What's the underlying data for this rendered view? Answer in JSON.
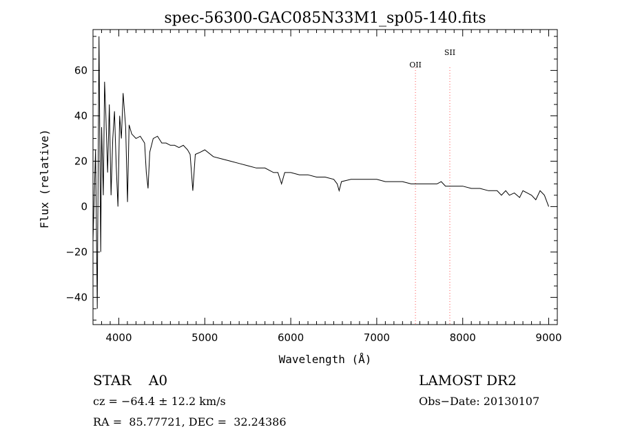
{
  "chart_data": {
    "type": "line",
    "title": "spec-56300-GAC085N33M1_sp05-140.fits",
    "xlabel": "Wavelength (Å)",
    "ylabel": "Flux (relative)",
    "xlim": [
      3700,
      9100
    ],
    "ylim": [
      -52,
      78
    ],
    "xticks": [
      4000,
      5000,
      6000,
      7000,
      8000,
      9000
    ],
    "yticks": [
      -40,
      -20,
      0,
      20,
      40,
      60
    ],
    "tick_labels_x": [
      "4000",
      "5000",
      "6000",
      "7000",
      "8000",
      "9000"
    ],
    "tick_labels_y": [
      "−40",
      "−20",
      "0",
      "20",
      "40",
      "60"
    ],
    "grid": false,
    "series": [
      {
        "x": [
          3700,
          3730,
          3750,
          3770,
          3790,
          3800,
          3820,
          3835,
          3850,
          3870,
          3890,
          3910,
          3930,
          3950,
          3970,
          3990,
          4010,
          4030,
          4050,
          4080,
          4101,
          4120,
          4150,
          4200,
          4250,
          4300,
          4320,
          4340,
          4360,
          4400,
          4450,
          4500,
          4550,
          4600,
          4650,
          4700,
          4750,
          4800,
          4830,
          4861,
          4890,
          4950,
          5000,
          5100,
          5200,
          5300,
          5400,
          5500,
          5600,
          5700,
          5800,
          5850,
          5893,
          5930,
          6000,
          6100,
          6200,
          6300,
          6400,
          6500,
          6540,
          6563,
          6590,
          6700,
          6800,
          6900,
          7000,
          7100,
          7200,
          7300,
          7400,
          7500,
          7600,
          7700,
          7750,
          7800,
          7900,
          8000,
          8100,
          8200,
          8300,
          8400,
          8450,
          8500,
          8542,
          8600,
          8662,
          8700,
          8750,
          8800,
          8850,
          8900,
          8950,
          9000
        ],
        "y": [
          -15,
          25,
          -45,
          75,
          -20,
          35,
          5,
          55,
          40,
          15,
          45,
          5,
          30,
          42,
          18,
          0,
          40,
          30,
          50,
          35,
          2,
          36,
          32,
          30,
          31,
          28,
          15,
          8,
          24,
          30,
          31,
          28,
          28,
          27,
          27,
          26,
          27,
          25,
          23,
          7,
          23,
          24,
          25,
          22,
          21,
          20,
          19,
          18,
          17,
          17,
          15,
          15,
          10,
          15,
          15,
          14,
          14,
          13,
          13,
          12,
          10,
          7,
          11,
          12,
          12,
          12,
          12,
          11,
          11,
          11,
          10,
          10,
          10,
          10,
          11,
          9,
          9,
          9,
          8,
          8,
          7,
          7,
          5,
          7,
          5,
          6,
          4,
          7,
          6,
          5,
          3,
          7,
          5,
          0
        ]
      }
    ],
    "lines": [
      {
        "label": "OII",
        "x": 7450,
        "color": "#ff4d4d"
      },
      {
        "label": "SII",
        "x": 7850,
        "color": "#ff4d4d"
      }
    ]
  },
  "info": {
    "star_label": "STAR",
    "spectral_type": "A0",
    "survey": "LAMOST DR2",
    "cz_text": "cz = −64.4 ± 12.2 km/s",
    "obs_date": "Obs−Date: 20130107",
    "radec_text": "RA =  85.77721, DEC =  32.24386"
  }
}
